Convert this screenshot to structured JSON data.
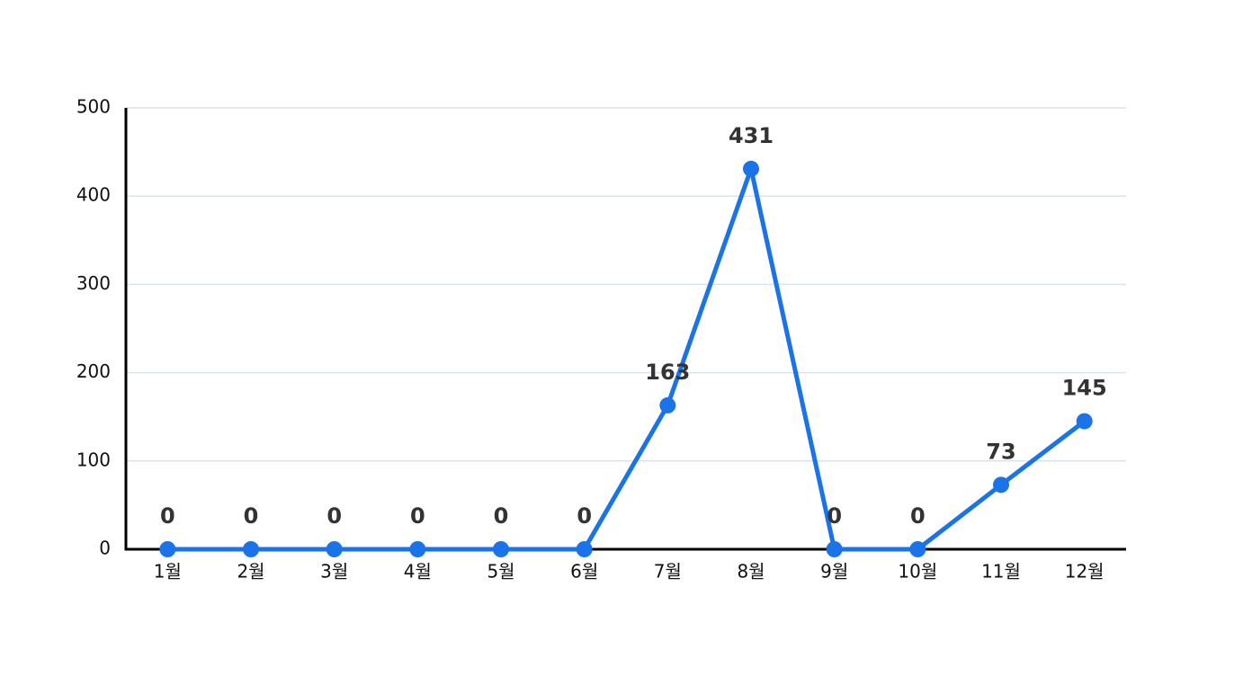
{
  "chart_data": {
    "type": "line",
    "categories": [
      "1월",
      "2월",
      "3월",
      "4월",
      "5월",
      "6월",
      "7월",
      "8월",
      "9월",
      "10월",
      "11월",
      "12월"
    ],
    "values": [
      0,
      0,
      0,
      0,
      0,
      0,
      163,
      431,
      0,
      0,
      73,
      145
    ],
    "color": "#1a73e8",
    "ylim": [
      0,
      500
    ],
    "yticks": [
      0,
      100,
      200,
      300,
      400,
      500
    ],
    "grid": true
  }
}
